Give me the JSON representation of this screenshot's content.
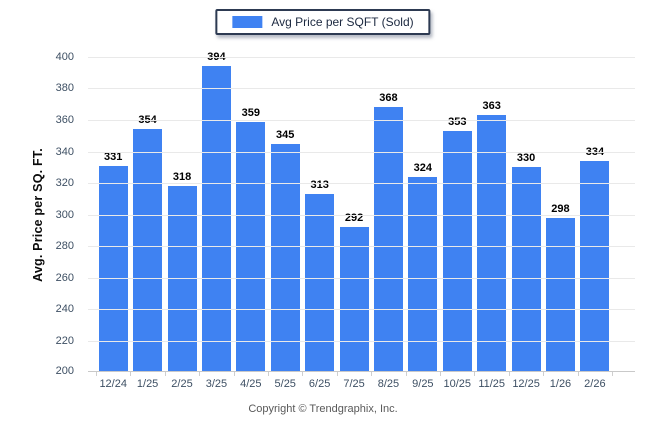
{
  "legend": {
    "label": "Avg Price per SQFT (Sold)",
    "swatch_color": "#3f82f2"
  },
  "chart_data": {
    "type": "bar",
    "title": "",
    "xlabel": "",
    "ylabel": "Avg. Price per SQ. FT.",
    "categories": [
      "12/24",
      "1/25",
      "2/25",
      "3/25",
      "4/25",
      "5/25",
      "6/25",
      "7/25",
      "8/25",
      "9/25",
      "10/25",
      "11/25",
      "12/25",
      "1/26",
      "2/26"
    ],
    "values": [
      331,
      354,
      318,
      394,
      359,
      345,
      313,
      292,
      368,
      324,
      353,
      363,
      330,
      298,
      334
    ],
    "series_name": "Avg Price per SQFT (Sold)",
    "ylim": [
      200,
      400
    ],
    "ytick_step": 20,
    "grid": "horizontal",
    "legend_position": "top-center",
    "bar_color": "#3f82f2",
    "value_labels": true
  },
  "footer": {
    "copyright": "Copyright © Trendgraphix, Inc."
  }
}
